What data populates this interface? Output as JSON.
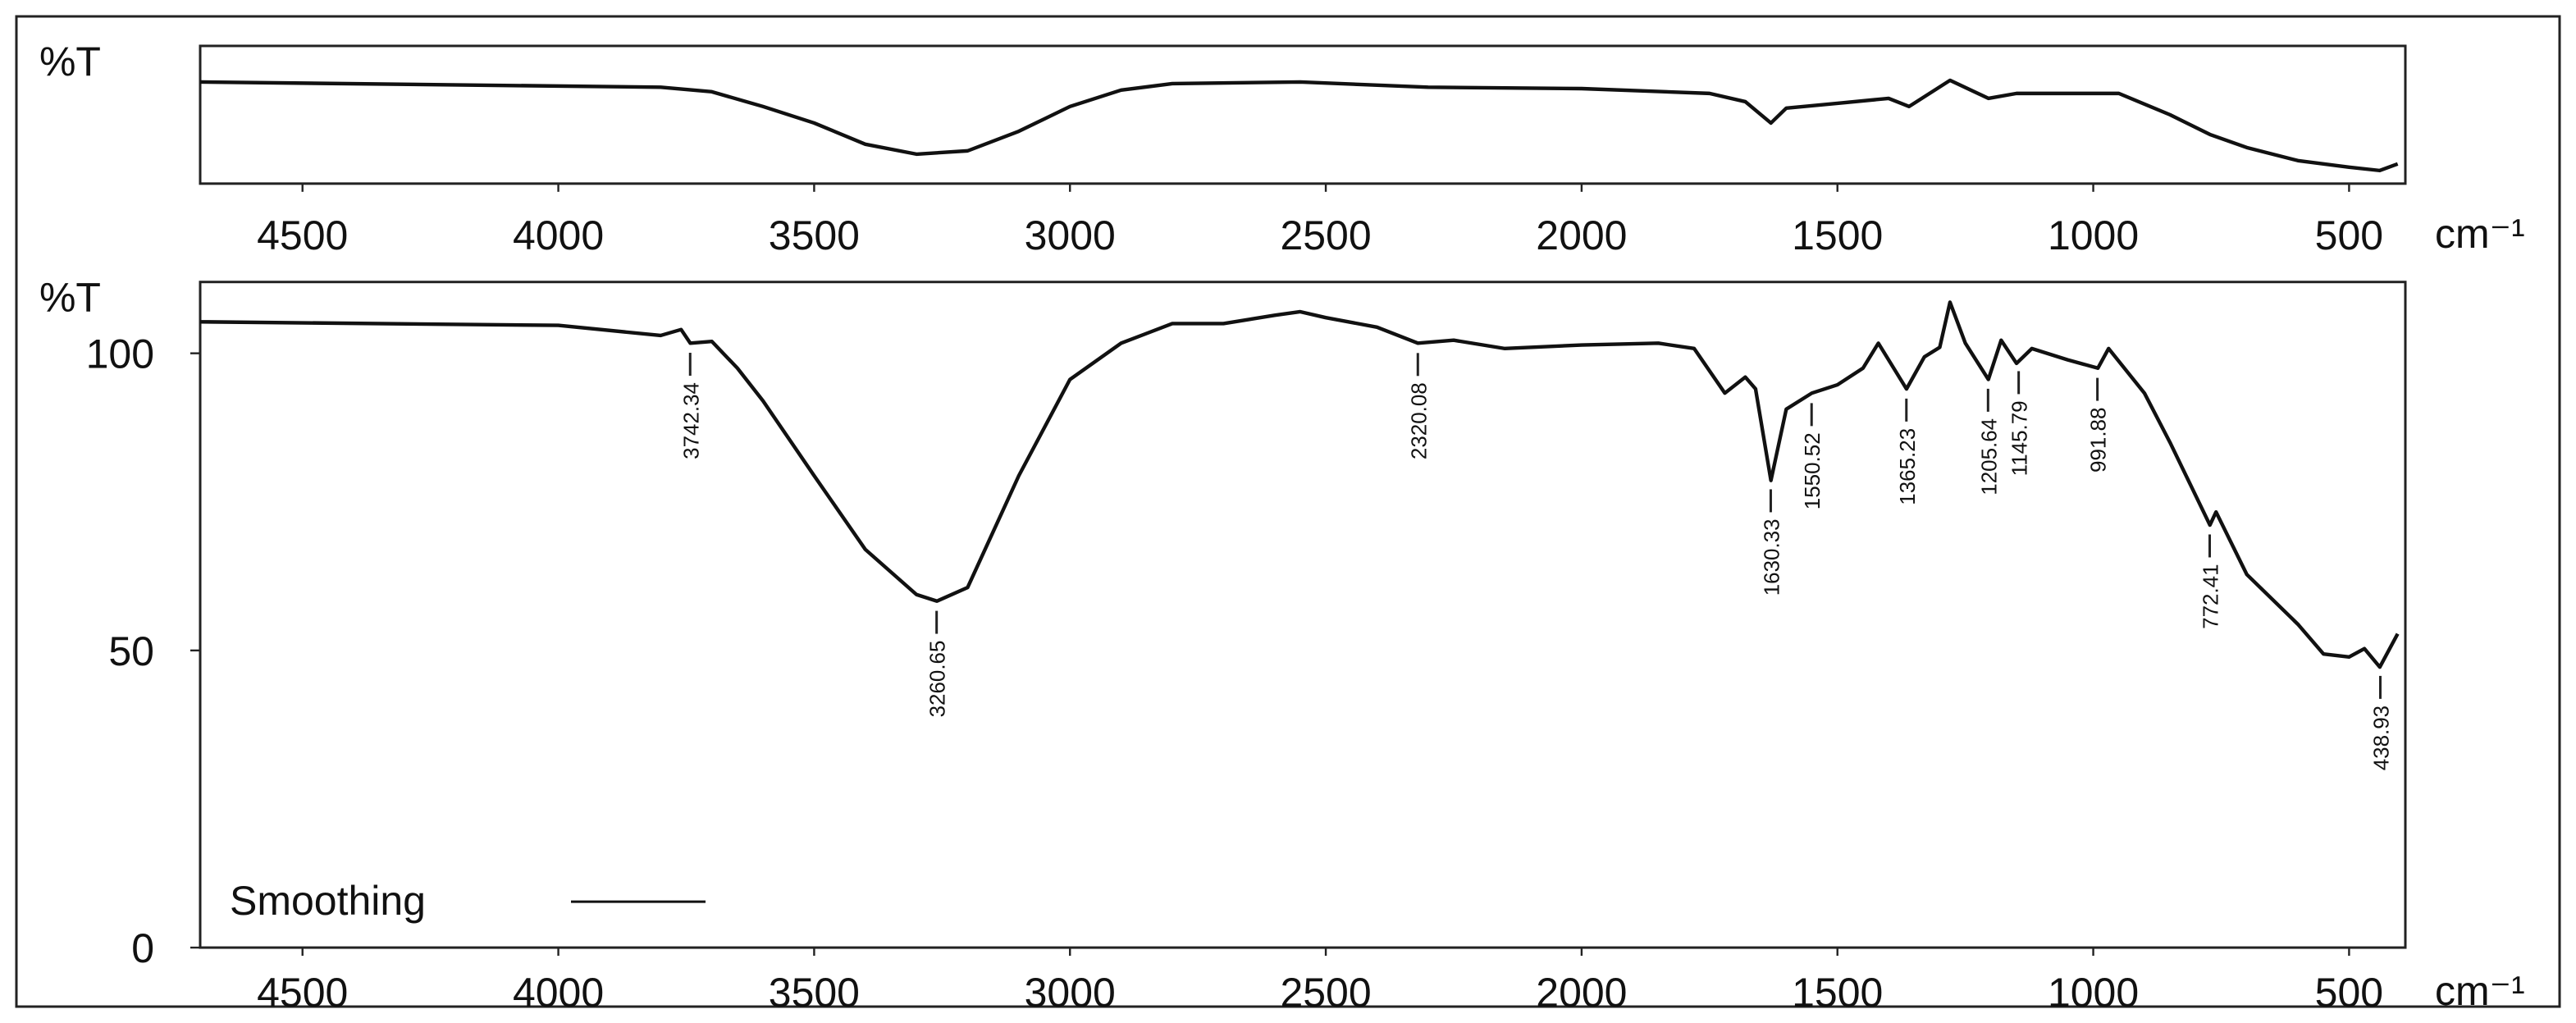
{
  "chart_data": [
    {
      "type": "line",
      "ylabel": "%T",
      "xlabel": "cm⁻¹",
      "xlim": [
        4700,
        390
      ],
      "ylim": [
        0,
        100
      ],
      "xticks": [
        4500,
        4000,
        3500,
        3000,
        2500,
        2000,
        1500,
        1000,
        500
      ],
      "series": [
        {
          "color": "#111111",
          "x": [
            4700,
            3800,
            3700,
            3600,
            3500,
            3400,
            3300,
            3200,
            3100,
            3000,
            2900,
            2800,
            2550,
            2300,
            2000,
            1750,
            1680,
            1630,
            1600,
            1500,
            1400,
            1360,
            1280,
            1205,
            1150,
            1000,
            950,
            850,
            772,
            700,
            600,
            500,
            440,
            405
          ],
          "values": [
            73.8,
            70,
            66.7,
            56,
            44,
            28.6,
            21.4,
            23.8,
            38,
            56,
            67.9,
            72.6,
            73.8,
            70,
            69,
            65.5,
            59.5,
            44,
            54.8,
            58.3,
            61.9,
            56,
            75,
            61.9,
            65.5,
            65.5,
            65.5,
            50,
            35.7,
            26.2,
            16.7,
            11.9,
            9.5,
            14.3
          ]
        }
      ]
    },
    {
      "type": "line",
      "ylabel": "%T",
      "xlabel": "cm⁻¹",
      "xlim": [
        4700,
        390
      ],
      "ylim": [
        0,
        112
      ],
      "xticks": [
        4500,
        4000,
        3500,
        3000,
        2500,
        2000,
        1500,
        1000,
        500
      ],
      "yticks": [
        0,
        50,
        100
      ],
      "legend": "lower left",
      "series": [
        {
          "name": "Smoothing",
          "color": "#111111",
          "x": [
            4700,
            4000,
            3800,
            3760,
            3742,
            3700,
            3650,
            3600,
            3500,
            3400,
            3300,
            3260,
            3200,
            3100,
            3000,
            2900,
            2800,
            2700,
            2600,
            2550,
            2500,
            2400,
            2320,
            2250,
            2150,
            2000,
            1850,
            1780,
            1720,
            1680,
            1660,
            1630,
            1600,
            1550,
            1500,
            1450,
            1420,
            1365,
            1330,
            1300,
            1280,
            1250,
            1205,
            1180,
            1150,
            1120,
            1050,
            991,
            970,
            900,
            850,
            772,
            760,
            700,
            600,
            550,
            500,
            470,
            440,
            405
          ],
          "values": [
            105.3,
            104.7,
            103,
            104,
            101.7,
            102,
            97.5,
            92,
            79.4,
            67,
            59.4,
            58.3,
            60.6,
            79.4,
            95.6,
            101.7,
            105,
            105,
            106.4,
            107,
            106,
            104.4,
            101.7,
            102.2,
            100.8,
            101.4,
            101.7,
            100.8,
            93.3,
            96,
            94,
            78.6,
            90.6,
            93.3,
            94.7,
            97.5,
            101.7,
            94,
            99.4,
            101,
            108.6,
            101.7,
            95.6,
            102.2,
            98.3,
            100.8,
            98.9,
            97.5,
            100.8,
            93.3,
            85,
            71.1,
            73.3,
            62.8,
            54.4,
            49.4,
            48.9,
            50.3,
            47.2,
            52.8
          ]
        }
      ],
      "annotations": [
        3742.34,
        3260.65,
        2320.08,
        1630.33,
        1550.52,
        1365.23,
        1205.64,
        1145.79,
        991.88,
        772.41,
        438.93
      ]
    }
  ]
}
